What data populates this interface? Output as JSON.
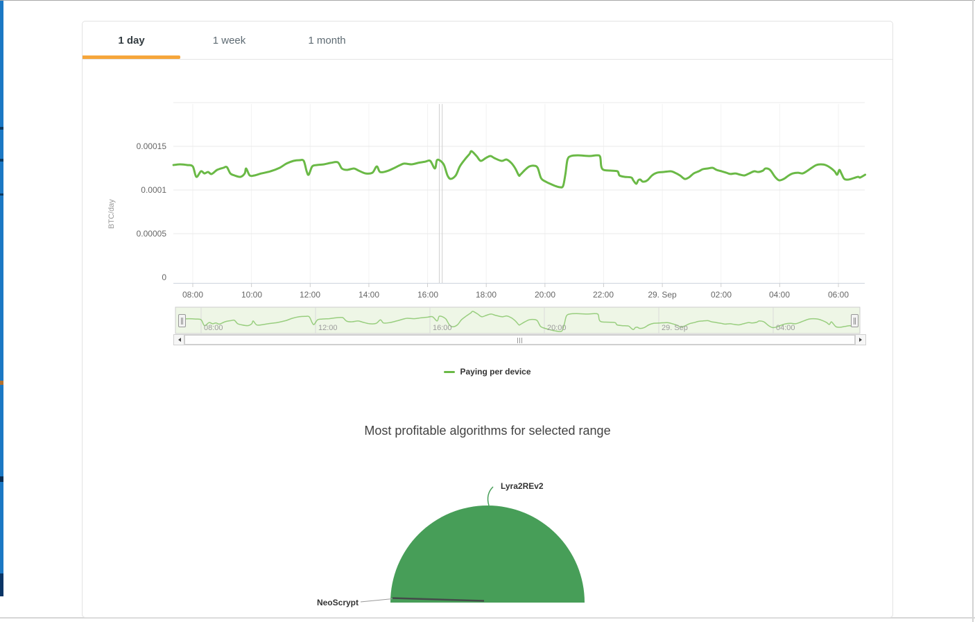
{
  "tabs": {
    "items": [
      {
        "label": "1 day",
        "active": true
      },
      {
        "label": "1 week",
        "active": false
      },
      {
        "label": "1 month",
        "active": false
      }
    ],
    "accent_color": "#f6a63b"
  },
  "legend": {
    "label": "Paying per device",
    "swatch_color": "#6ab946"
  },
  "pie_section": {
    "title": "Most profitable algorithms for selected range"
  },
  "colors": {
    "line_green": "#6ab946",
    "navigator_line": "rgba(106,185,70,0.65)",
    "navigator_fill": "#eef6e6",
    "pie_green": "#479e58",
    "pie_dark_slice": "#434348",
    "grid": "#e9e9e9",
    "grid_vertical": "#f2f2f2",
    "axis_line": "#ccd3dd",
    "accent_orange": "#f6a63b"
  },
  "chart_data": [
    {
      "type": "line",
      "title": "",
      "xlabel": "",
      "ylabel": "BTC/day",
      "series_name": "Paying per device",
      "ylim": [
        0,
        0.0002
      ],
      "v_scale": 0.0001,
      "t_unit": "hours since 28 Sep 00:00 (24+ = 29 Sep)",
      "y_ticks": [
        {
          "v": 0,
          "label": "0"
        },
        {
          "v": 0.5,
          "label": "0.00005"
        },
        {
          "v": 1.0,
          "label": "0.0001"
        },
        {
          "v": 1.5,
          "label": "0.00015"
        }
      ],
      "y_gridlines": [
        0.5,
        1.0,
        1.5,
        2.0
      ],
      "x_ticks": [
        {
          "t": 8,
          "label": "08:00"
        },
        {
          "t": 10,
          "label": "10:00"
        },
        {
          "t": 12,
          "label": "12:00"
        },
        {
          "t": 14,
          "label": "14:00"
        },
        {
          "t": 16,
          "label": "16:00"
        },
        {
          "t": 18,
          "label": "18:00"
        },
        {
          "t": 20,
          "label": "20:00"
        },
        {
          "t": 22,
          "label": "22:00"
        },
        {
          "t": 24,
          "label": "29. Sep"
        },
        {
          "t": 26,
          "label": "02:00"
        },
        {
          "t": 28,
          "label": "04:00"
        },
        {
          "t": 30,
          "label": "06:00"
        }
      ],
      "crosshair_t": [
        16.4,
        16.5
      ],
      "navigator_x_ticks": [
        {
          "t": 8,
          "label": "08:00"
        },
        {
          "t": 12,
          "label": "12:00"
        },
        {
          "t": 16,
          "label": "16:00"
        },
        {
          "t": 20,
          "label": "20:00"
        },
        {
          "t": 24,
          "label": "29. Sep"
        },
        {
          "t": 28,
          "label": "04:00"
        }
      ],
      "points": [
        [
          7.34,
          1.286
        ],
        [
          7.57,
          1.294
        ],
        [
          7.81,
          1.286
        ],
        [
          8.0,
          1.27
        ],
        [
          8.12,
          1.151
        ],
        [
          8.28,
          1.214
        ],
        [
          8.4,
          1.19
        ],
        [
          8.52,
          1.206
        ],
        [
          8.64,
          1.183
        ],
        [
          8.83,
          1.23
        ],
        [
          9.04,
          1.254
        ],
        [
          9.16,
          1.262
        ],
        [
          9.28,
          1.19
        ],
        [
          9.42,
          1.167
        ],
        [
          9.63,
          1.151
        ],
        [
          9.77,
          1.19
        ],
        [
          9.82,
          1.246
        ],
        [
          9.94,
          1.167
        ],
        [
          10.1,
          1.167
        ],
        [
          10.34,
          1.19
        ],
        [
          10.65,
          1.214
        ],
        [
          10.96,
          1.254
        ],
        [
          11.19,
          1.302
        ],
        [
          11.43,
          1.333
        ],
        [
          11.64,
          1.341
        ],
        [
          11.78,
          1.333
        ],
        [
          11.88,
          1.214
        ],
        [
          11.95,
          1.175
        ],
        [
          12.07,
          1.27
        ],
        [
          12.23,
          1.286
        ],
        [
          12.47,
          1.294
        ],
        [
          12.7,
          1.31
        ],
        [
          12.94,
          1.317
        ],
        [
          13.08,
          1.246
        ],
        [
          13.25,
          1.23
        ],
        [
          13.49,
          1.246
        ],
        [
          13.65,
          1.222
        ],
        [
          13.89,
          1.19
        ],
        [
          14.12,
          1.198
        ],
        [
          14.27,
          1.27
        ],
        [
          14.38,
          1.206
        ],
        [
          14.6,
          1.214
        ],
        [
          14.83,
          1.246
        ],
        [
          15.07,
          1.286
        ],
        [
          15.21,
          1.302
        ],
        [
          15.45,
          1.294
        ],
        [
          15.68,
          1.31
        ],
        [
          15.92,
          1.325
        ],
        [
          16.09,
          1.333
        ],
        [
          16.25,
          1.246
        ],
        [
          16.32,
          1.341
        ],
        [
          16.44,
          1.333
        ],
        [
          16.56,
          1.286
        ],
        [
          16.68,
          1.167
        ],
        [
          16.79,
          1.127
        ],
        [
          16.96,
          1.167
        ],
        [
          17.1,
          1.27
        ],
        [
          17.27,
          1.349
        ],
        [
          17.43,
          1.413
        ],
        [
          17.5,
          1.444
        ],
        [
          17.67,
          1.389
        ],
        [
          17.81,
          1.333
        ],
        [
          17.98,
          1.365
        ],
        [
          18.14,
          1.389
        ],
        [
          18.28,
          1.365
        ],
        [
          18.52,
          1.333
        ],
        [
          18.69,
          1.349
        ],
        [
          18.85,
          1.31
        ],
        [
          18.99,
          1.246
        ],
        [
          19.11,
          1.167
        ],
        [
          19.16,
          1.175
        ],
        [
          19.32,
          1.23
        ],
        [
          19.47,
          1.27
        ],
        [
          19.63,
          1.278
        ],
        [
          19.75,
          1.254
        ],
        [
          19.87,
          1.135
        ],
        [
          20.03,
          1.095
        ],
        [
          20.18,
          1.071
        ],
        [
          20.34,
          1.048
        ],
        [
          20.51,
          1.032
        ],
        [
          20.62,
          1.048
        ],
        [
          20.7,
          1.19
        ],
        [
          20.77,
          1.349
        ],
        [
          20.89,
          1.389
        ],
        [
          21.12,
          1.397
        ],
        [
          21.52,
          1.389
        ],
        [
          21.76,
          1.397
        ],
        [
          21.88,
          1.381
        ],
        [
          21.92,
          1.27
        ],
        [
          22.0,
          1.23
        ],
        [
          22.23,
          1.222
        ],
        [
          22.47,
          1.214
        ],
        [
          22.54,
          1.167
        ],
        [
          22.71,
          1.151
        ],
        [
          22.94,
          1.143
        ],
        [
          23.01,
          1.111
        ],
        [
          23.11,
          1.071
        ],
        [
          23.18,
          1.111
        ],
        [
          23.25,
          1.119
        ],
        [
          23.34,
          1.095
        ],
        [
          23.49,
          1.111
        ],
        [
          23.65,
          1.167
        ],
        [
          23.82,
          1.198
        ],
        [
          24.05,
          1.206
        ],
        [
          24.29,
          1.214
        ],
        [
          24.43,
          1.198
        ],
        [
          24.6,
          1.167
        ],
        [
          24.76,
          1.127
        ],
        [
          24.9,
          1.143
        ],
        [
          25.07,
          1.19
        ],
        [
          25.24,
          1.214
        ],
        [
          25.38,
          1.238
        ],
        [
          25.54,
          1.246
        ],
        [
          25.71,
          1.254
        ],
        [
          25.85,
          1.23
        ],
        [
          26.02,
          1.214
        ],
        [
          26.18,
          1.198
        ],
        [
          26.32,
          1.183
        ],
        [
          26.49,
          1.19
        ],
        [
          26.65,
          1.175
        ],
        [
          26.8,
          1.167
        ],
        [
          26.96,
          1.19
        ],
        [
          27.13,
          1.214
        ],
        [
          27.27,
          1.206
        ],
        [
          27.43,
          1.222
        ],
        [
          27.51,
          1.246
        ],
        [
          27.67,
          1.23
        ],
        [
          27.84,
          1.151
        ],
        [
          27.98,
          1.111
        ],
        [
          28.14,
          1.127
        ],
        [
          28.31,
          1.167
        ],
        [
          28.45,
          1.19
        ],
        [
          28.62,
          1.198
        ],
        [
          28.78,
          1.19
        ],
        [
          28.92,
          1.214
        ],
        [
          29.09,
          1.254
        ],
        [
          29.25,
          1.286
        ],
        [
          29.4,
          1.294
        ],
        [
          29.56,
          1.286
        ],
        [
          29.73,
          1.254
        ],
        [
          29.87,
          1.214
        ],
        [
          29.96,
          1.175
        ],
        [
          30.03,
          1.23
        ],
        [
          30.1,
          1.19
        ],
        [
          30.2,
          1.127
        ],
        [
          30.34,
          1.119
        ],
        [
          30.51,
          1.135
        ],
        [
          30.67,
          1.151
        ],
        [
          30.74,
          1.143
        ],
        [
          30.91,
          1.175
        ]
      ]
    },
    {
      "type": "pie",
      "title": "Most profitable algorithms for selected range",
      "slices": [
        {
          "name": "Lyra2REv2",
          "value_pct": 99.5,
          "color": "#479e58"
        },
        {
          "name": "NeoScrypt",
          "value_pct": 0.5,
          "color": "#434348"
        }
      ],
      "legend_position": "none"
    }
  ]
}
